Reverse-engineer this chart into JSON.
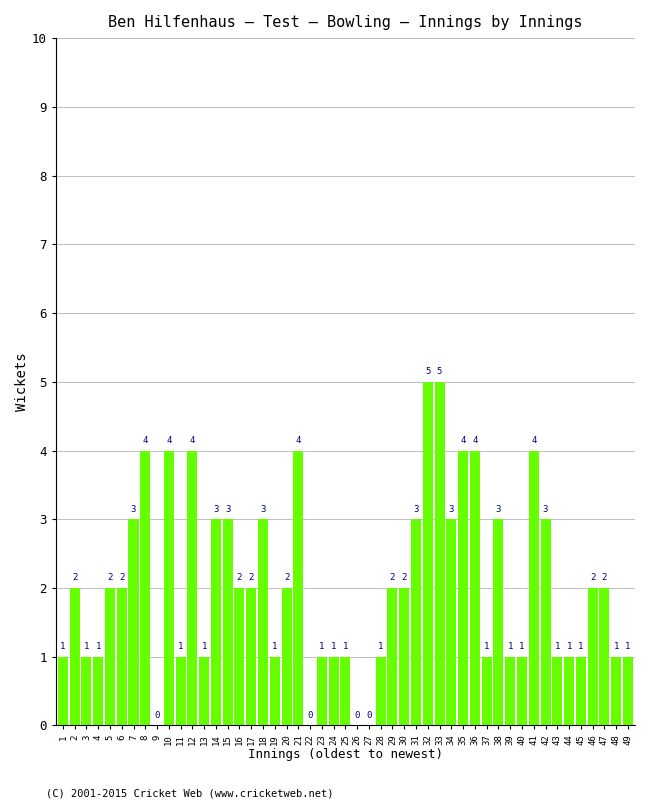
{
  "title": "Ben Hilfenhaus – Test – Bowling – Innings by Innings",
  "xlabel": "Innings (oldest to newest)",
  "ylabel": "Wickets",
  "ylim": [
    0,
    10
  ],
  "bar_color": "#66ff00",
  "label_color": "#000080",
  "footer": "(C) 2001-2015 Cricket Web (www.cricketweb.net)",
  "innings": [
    1,
    2,
    3,
    4,
    5,
    6,
    7,
    8,
    9,
    10,
    11,
    12,
    13,
    14,
    15,
    16,
    17,
    18,
    19,
    20,
    21,
    22,
    23,
    24,
    25,
    26,
    27,
    28,
    29,
    30,
    31,
    32,
    33,
    34,
    35,
    36,
    37,
    38,
    39,
    40,
    41,
    42,
    43,
    44,
    45,
    46,
    47,
    48,
    49
  ],
  "wickets": [
    1,
    2,
    1,
    1,
    2,
    2,
    3,
    4,
    0,
    4,
    1,
    4,
    1,
    3,
    3,
    2,
    2,
    3,
    1,
    2,
    4,
    0,
    1,
    1,
    1,
    0,
    0,
    1,
    2,
    2,
    3,
    5,
    5,
    3,
    4,
    4,
    1,
    3,
    1,
    1,
    4,
    3,
    1,
    1,
    1,
    2,
    2,
    1,
    1
  ]
}
